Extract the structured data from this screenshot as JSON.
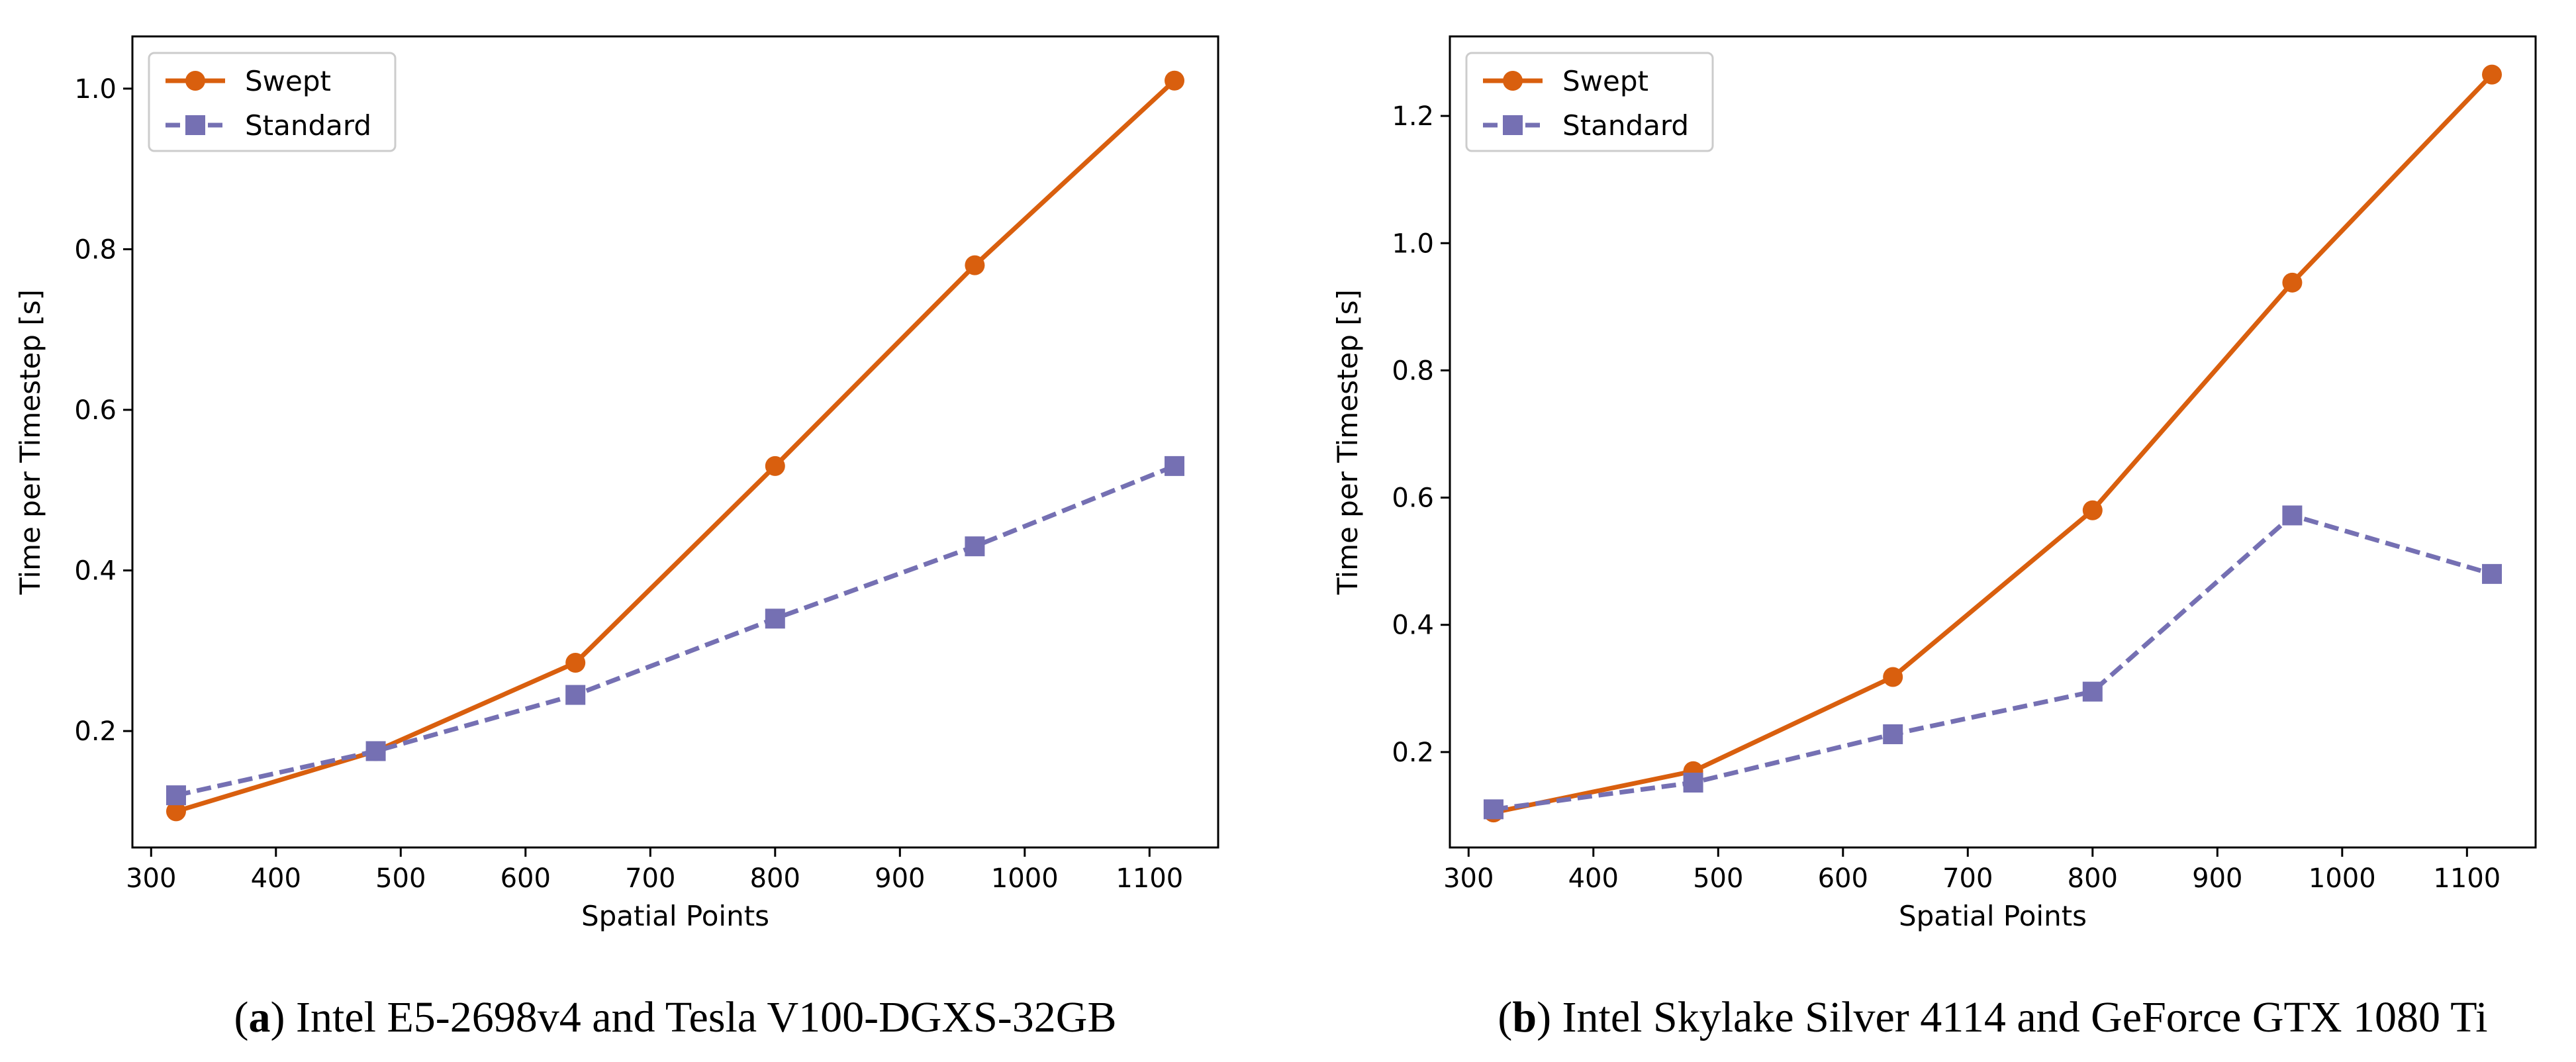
{
  "colors": {
    "swept": "#d95f0e",
    "standard": "#7570b3",
    "axis": "#000000",
    "background": "#ffffff"
  },
  "chart_data": [
    {
      "type": "line",
      "title": "",
      "xlabel": "Spatial Points",
      "ylabel": "Time per Timestep [s]",
      "xlim": [
        285,
        1155
      ],
      "ylim": [
        0.055,
        1.065
      ],
      "xticks": [
        300,
        400,
        500,
        600,
        700,
        800,
        900,
        1000,
        1100
      ],
      "yticks": [
        0.2,
        0.4,
        0.6,
        0.8,
        1.0
      ],
      "ytick_labels": [
        "0.2",
        "0.4",
        "0.6",
        "0.8",
        "1.0"
      ],
      "x": [
        320,
        480,
        640,
        800,
        960,
        1120
      ],
      "series": [
        {
          "name": "Swept",
          "values": [
            0.1,
            0.175,
            0.285,
            0.53,
            0.78,
            1.01
          ],
          "marker": "circle",
          "linestyle": "solid"
        },
        {
          "name": "Standard",
          "values": [
            0.12,
            0.175,
            0.245,
            0.34,
            0.43,
            0.53
          ],
          "marker": "square",
          "linestyle": "dashed"
        }
      ],
      "legend": "top-left",
      "grid": false,
      "caption_label": "a",
      "caption_text": " Intel E5-2698v4 and Tesla V100-DGXS-32GB"
    },
    {
      "type": "line",
      "title": "",
      "xlabel": "Spatial Points",
      "ylabel": "Time per Timestep [s]",
      "xlim": [
        285,
        1155
      ],
      "ylim": [
        0.05,
        1.325
      ],
      "xticks": [
        300,
        400,
        500,
        600,
        700,
        800,
        900,
        1000,
        1100
      ],
      "yticks": [
        0.2,
        0.4,
        0.6,
        0.8,
        1.0,
        1.2
      ],
      "ytick_labels": [
        "0.2",
        "0.4",
        "0.6",
        "0.8",
        "1.0",
        "1.2"
      ],
      "x": [
        320,
        480,
        640,
        800,
        960,
        1120
      ],
      "series": [
        {
          "name": "Swept",
          "values": [
            0.105,
            0.17,
            0.318,
            0.58,
            0.938,
            1.265
          ],
          "marker": "circle",
          "linestyle": "solid"
        },
        {
          "name": "Standard",
          "values": [
            0.11,
            0.152,
            0.228,
            0.295,
            0.572,
            0.48
          ],
          "marker": "square",
          "linestyle": "dashed"
        }
      ],
      "legend": "top-left",
      "grid": false,
      "caption_label": "b",
      "caption_text": " Intel Skylake Silver 4114 and GeForce GTX 1080 Ti"
    }
  ]
}
